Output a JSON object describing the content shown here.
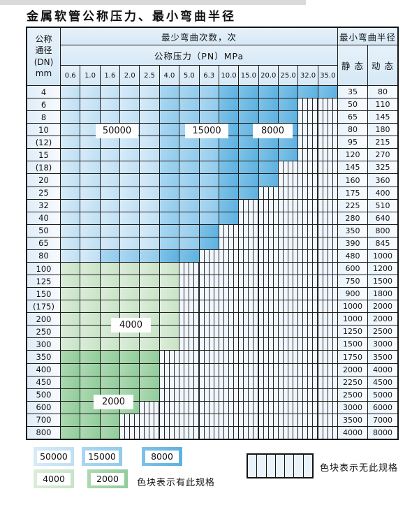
{
  "page": {
    "title": "金属软管公称压力、最小弯曲半径"
  },
  "table": {
    "header": {
      "dn_label_lines": [
        "公称",
        "通径",
        "(DN)",
        "mm"
      ],
      "cycles_label": "最少弯曲次数，次",
      "pressure_label": "公称压力（PN）MPa",
      "pn_values": [
        "0.6",
        "1.0",
        "1.6",
        "2.0",
        "2.5",
        "4.0",
        "5.0",
        "6.3",
        "10.0",
        "15.0",
        "20.0",
        "25.0",
        "32.0",
        "35.0"
      ],
      "radius_label": "最小弯曲半径",
      "static_label": "静 态",
      "dynamic_label": "动 态"
    },
    "shade_key": {
      "b1": "50000",
      "b2": "15000",
      "b3": "8000",
      "g1": "4000",
      "g2": "2000",
      "ns": "no-spec-striped"
    },
    "rows": [
      {
        "dn": "4",
        "bands": [
          [
            "b1",
            5
          ],
          [
            "b2",
            3
          ],
          [
            "b3",
            6
          ]
        ],
        "static": "35",
        "dynamic": "80"
      },
      {
        "dn": "6",
        "bands": [
          [
            "b1",
            5
          ],
          [
            "b2",
            3
          ],
          [
            "b3",
            4
          ]
        ],
        "static": "50",
        "dynamic": "110"
      },
      {
        "dn": "8",
        "bands": [
          [
            "b1",
            5
          ],
          [
            "b2",
            3
          ],
          [
            "b3",
            4
          ]
        ],
        "static": "65",
        "dynamic": "145"
      },
      {
        "dn": "10",
        "bands": [
          [
            "b1",
            5
          ],
          [
            "b2",
            3
          ],
          [
            "b3",
            4
          ]
        ],
        "static": "80",
        "dynamic": "180"
      },
      {
        "dn": "(12)",
        "bands": [
          [
            "b1",
            5
          ],
          [
            "b2",
            3
          ],
          [
            "b3",
            4
          ]
        ],
        "static": "95",
        "dynamic": "215"
      },
      {
        "dn": "15",
        "bands": [
          [
            "b1",
            5
          ],
          [
            "b2",
            3
          ],
          [
            "b3",
            4
          ]
        ],
        "static": "120",
        "dynamic": "270"
      },
      {
        "dn": "(18)",
        "bands": [
          [
            "b1",
            5
          ],
          [
            "b2",
            3
          ],
          [
            "b3",
            3
          ]
        ],
        "static": "145",
        "dynamic": "325"
      },
      {
        "dn": "20",
        "bands": [
          [
            "b1",
            5
          ],
          [
            "b2",
            3
          ],
          [
            "b3",
            3
          ]
        ],
        "static": "160",
        "dynamic": "360"
      },
      {
        "dn": "25",
        "bands": [
          [
            "b1",
            5
          ],
          [
            "b2",
            3
          ],
          [
            "b3",
            2
          ]
        ],
        "static": "175",
        "dynamic": "400"
      },
      {
        "dn": "32",
        "bands": [
          [
            "b1",
            5
          ],
          [
            "b2",
            3
          ],
          [
            "b3",
            1
          ]
        ],
        "static": "225",
        "dynamic": "510"
      },
      {
        "dn": "40",
        "bands": [
          [
            "b1",
            5
          ],
          [
            "b2",
            3
          ],
          [
            "b3",
            1
          ]
        ],
        "static": "280",
        "dynamic": "640"
      },
      {
        "dn": "50",
        "bands": [
          [
            "b1",
            5
          ],
          [
            "b2",
            2
          ],
          [
            "b3",
            1
          ]
        ],
        "static": "350",
        "dynamic": "800"
      },
      {
        "dn": "65",
        "bands": [
          [
            "b1",
            5
          ],
          [
            "b2",
            2
          ],
          [
            "b3",
            1
          ]
        ],
        "static": "390",
        "dynamic": "845"
      },
      {
        "dn": "80",
        "bands": [
          [
            "b1",
            2
          ],
          [
            "b2",
            3
          ],
          [
            "b3",
            2
          ]
        ],
        "static": "480",
        "dynamic": "1000"
      },
      {
        "dn": "100",
        "bands": [
          [
            "g1",
            6
          ]
        ],
        "static": "600",
        "dynamic": "1200"
      },
      {
        "dn": "125",
        "bands": [
          [
            "g1",
            6
          ]
        ],
        "static": "750",
        "dynamic": "1500"
      },
      {
        "dn": "150",
        "bands": [
          [
            "g1",
            6
          ]
        ],
        "static": "900",
        "dynamic": "1800"
      },
      {
        "dn": "(175)",
        "bands": [
          [
            "g1",
            6
          ]
        ],
        "static": "1000",
        "dynamic": "2000"
      },
      {
        "dn": "200",
        "bands": [
          [
            "g1",
            6
          ]
        ],
        "static": "1000",
        "dynamic": "2000"
      },
      {
        "dn": "250",
        "bands": [
          [
            "g1",
            6
          ]
        ],
        "static": "1250",
        "dynamic": "2500"
      },
      {
        "dn": "300",
        "bands": [
          [
            "g1",
            6
          ]
        ],
        "static": "1500",
        "dynamic": "3000"
      },
      {
        "dn": "350",
        "bands": [
          [
            "g2",
            5
          ]
        ],
        "static": "1750",
        "dynamic": "3500"
      },
      {
        "dn": "400",
        "bands": [
          [
            "g2",
            5
          ]
        ],
        "static": "2000",
        "dynamic": "4000"
      },
      {
        "dn": "450",
        "bands": [
          [
            "g2",
            5
          ]
        ],
        "static": "2250",
        "dynamic": "4500"
      },
      {
        "dn": "500",
        "bands": [
          [
            "g2",
            5
          ]
        ],
        "static": "2500",
        "dynamic": "5000"
      },
      {
        "dn": "600",
        "bands": [
          [
            "g2",
            4
          ]
        ],
        "static": "3000",
        "dynamic": "6000"
      },
      {
        "dn": "700",
        "bands": [
          [
            "g2",
            3
          ]
        ],
        "static": "3500",
        "dynamic": "7000"
      },
      {
        "dn": "800",
        "bands": [
          [
            "g2",
            3
          ]
        ],
        "static": "4000",
        "dynamic": "8000"
      }
    ]
  },
  "overlays": {
    "cycles_50000": "50000",
    "cycles_15000": "15000",
    "cycles_8000": "8000",
    "cycles_4000": "4000",
    "cycles_2000": "2000"
  },
  "legend": {
    "swatches": [
      {
        "label": "50000",
        "shade": "b1"
      },
      {
        "label": "15000",
        "shade": "b2"
      },
      {
        "label": "8000",
        "shade": "b3"
      },
      {
        "label": "4000",
        "shade": "g1"
      },
      {
        "label": "2000",
        "shade": "g2"
      }
    ],
    "has_spec_note": "色块表示有此规格",
    "no_spec_note": "色块表示无此规格"
  },
  "colors": {
    "cycles_50000": "#cde6f7",
    "cycles_15000": "#9fd2ef",
    "cycles_8000": "#6cb9e3",
    "cycles_4000": "#d4ead2",
    "cycles_2000": "#9fd2a5",
    "no_spec_bg": "#f1f7fc",
    "grid_line": "#1b1b1b",
    "header_bg": "#ddecf8"
  }
}
